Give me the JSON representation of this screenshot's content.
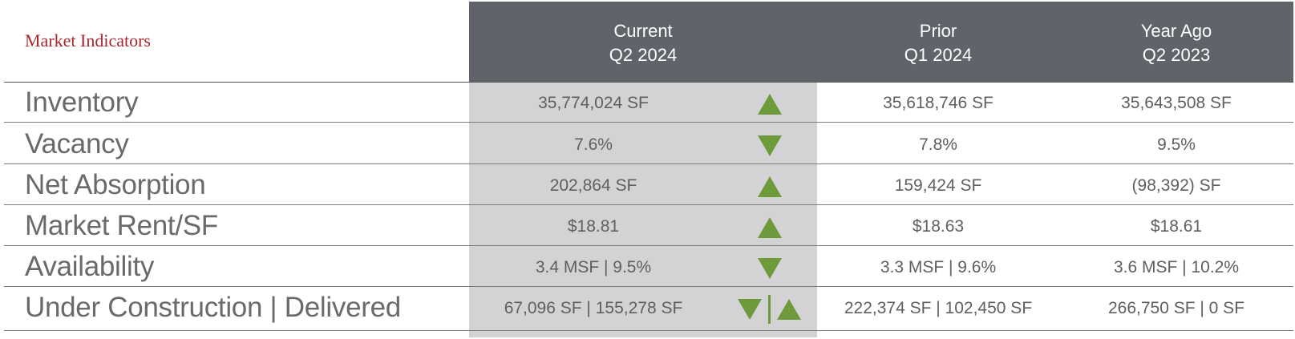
{
  "title": "Market Indicators",
  "columns": [
    {
      "line1": "Current",
      "line2": "Q2 2024"
    },
    {
      "line1": "Prior",
      "line2": "Q1 2024"
    },
    {
      "line1": "Year Ago",
      "line2": "Q2 2023"
    }
  ],
  "colors": {
    "header": "#606369",
    "current_band": "#d3d3d5",
    "title": "#a8262c",
    "trend": "#6f9a3c"
  },
  "rows": [
    {
      "label": "Inventory",
      "current": "35,774,024 SF",
      "trend": [
        "up-icon"
      ],
      "prior": "35,618,746 SF",
      "year_ago": "35,643,508 SF"
    },
    {
      "label": "Vacancy",
      "current": "7.6%",
      "trend": [
        "down-icon"
      ],
      "prior": "7.8%",
      "year_ago": "9.5%"
    },
    {
      "label": "Net Absorption",
      "current": "202,864 SF",
      "trend": [
        "up-icon"
      ],
      "prior": "159,424 SF",
      "year_ago": "(98,392) SF"
    },
    {
      "label": "Market Rent/SF",
      "current": "$18.81",
      "trend": [
        "up-icon"
      ],
      "prior": "$18.63",
      "year_ago": "$18.61"
    },
    {
      "label": "Availability",
      "current": "3.4 MSF | 9.5%",
      "trend": [
        "down-icon"
      ],
      "prior": "3.3 MSF | 9.6%",
      "year_ago": "3.6 MSF | 10.2%"
    },
    {
      "label": "Under Construction | Delivered",
      "current": "67,096 SF | 155,278 SF",
      "trend": [
        "down-icon",
        "up-icon"
      ],
      "prior": "222,374 SF | 102,450 SF",
      "year_ago": "266,750 SF | 0 SF"
    }
  ]
}
